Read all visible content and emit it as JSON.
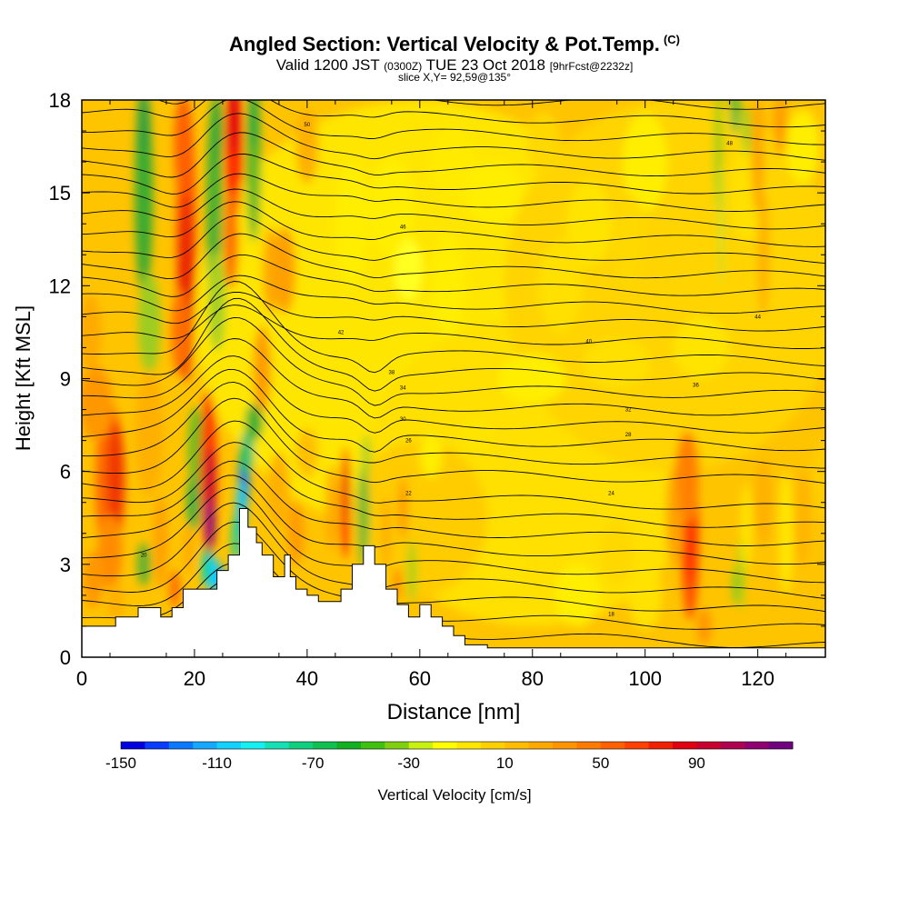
{
  "header": {
    "title": "Angled Section: Vertical Velocity & Pot.Temp.",
    "title_tag": "(C)",
    "valid_prefix": "Valid 1200 JST",
    "valid_utc": "(0300Z)",
    "valid_date": "TUE 23 Oct 2018",
    "forecast": "[9hrFcst@2232z]",
    "slice": "slice X,Y= 92,59@135°"
  },
  "chart_data": {
    "type": "heatmap",
    "xlabel": "Distance [nm]",
    "ylabel": "Height [Kft MSL]",
    "xlim": [
      0,
      132
    ],
    "ylim": [
      0,
      18
    ],
    "x_ticks": [
      0,
      20,
      40,
      60,
      80,
      100,
      120
    ],
    "y_ticks": [
      0,
      3,
      6,
      9,
      12,
      15,
      18
    ],
    "colorbar": {
      "label": "Vertical Velocity [cm/s]",
      "range": [
        -150,
        130
      ],
      "ticks": [
        -150,
        -110,
        -70,
        -30,
        10,
        50,
        90
      ],
      "colors": [
        "#0000e0",
        "#0a3cff",
        "#0a78ff",
        "#14a8ff",
        "#14d0ff",
        "#14f0f0",
        "#14e0b4",
        "#10d080",
        "#10c050",
        "#10b020",
        "#40c010",
        "#80d010",
        "#c8f010",
        "#ffff00",
        "#ffe600",
        "#ffd000",
        "#ffbc00",
        "#ffa800",
        "#ff9400",
        "#ff7a00",
        "#ff6000",
        "#ff4000",
        "#f02000",
        "#e00010",
        "#c80030",
        "#b00050",
        "#900070",
        "#700080"
      ]
    },
    "terrain": [
      [
        0,
        1.0
      ],
      [
        6,
        1.0
      ],
      [
        6,
        1.3
      ],
      [
        10,
        1.3
      ],
      [
        10,
        1.6
      ],
      [
        14,
        1.6
      ],
      [
        14,
        1.3
      ],
      [
        16,
        1.3
      ],
      [
        16,
        1.6
      ],
      [
        18,
        1.6
      ],
      [
        18,
        2.2
      ],
      [
        24,
        2.2
      ],
      [
        24,
        2.8
      ],
      [
        26,
        2.8
      ],
      [
        26,
        3.3
      ],
      [
        28,
        3.3
      ],
      [
        28,
        4.8
      ],
      [
        29.5,
        4.8
      ],
      [
        29.5,
        4.2
      ],
      [
        31,
        4.2
      ],
      [
        31,
        3.7
      ],
      [
        32,
        3.7
      ],
      [
        32,
        3.3
      ],
      [
        34,
        3.3
      ],
      [
        34,
        2.6
      ],
      [
        36,
        2.6
      ],
      [
        36,
        3.3
      ],
      [
        37,
        3.3
      ],
      [
        37,
        2.6
      ],
      [
        38,
        2.6
      ],
      [
        38,
        2.2
      ],
      [
        40,
        2.2
      ],
      [
        40,
        2.0
      ],
      [
        42,
        2.0
      ],
      [
        42,
        1.8
      ],
      [
        46,
        1.8
      ],
      [
        46,
        2.2
      ],
      [
        48,
        2.2
      ],
      [
        48,
        3.0
      ],
      [
        50,
        3.0
      ],
      [
        50,
        3.6
      ],
      [
        52,
        3.6
      ],
      [
        52,
        3.0
      ],
      [
        54,
        3.0
      ],
      [
        54,
        2.2
      ],
      [
        56,
        2.2
      ],
      [
        56,
        1.7
      ],
      [
        58,
        1.7
      ],
      [
        58,
        1.3
      ],
      [
        60,
        1.3
      ],
      [
        60,
        1.7
      ],
      [
        62,
        1.7
      ],
      [
        62,
        1.3
      ],
      [
        64,
        1.3
      ],
      [
        64,
        1.0
      ],
      [
        66,
        1.0
      ],
      [
        66,
        0.7
      ],
      [
        68,
        0.7
      ],
      [
        68,
        0.4
      ],
      [
        72,
        0.4
      ],
      [
        72,
        0.3
      ],
      [
        132,
        0.3
      ]
    ],
    "isentrope_labels": [
      "18",
      "20",
      "22",
      "24",
      "26",
      "28",
      "30",
      "32",
      "34",
      "36",
      "38",
      "40",
      "42",
      "44",
      "46",
      "48",
      "50"
    ]
  }
}
